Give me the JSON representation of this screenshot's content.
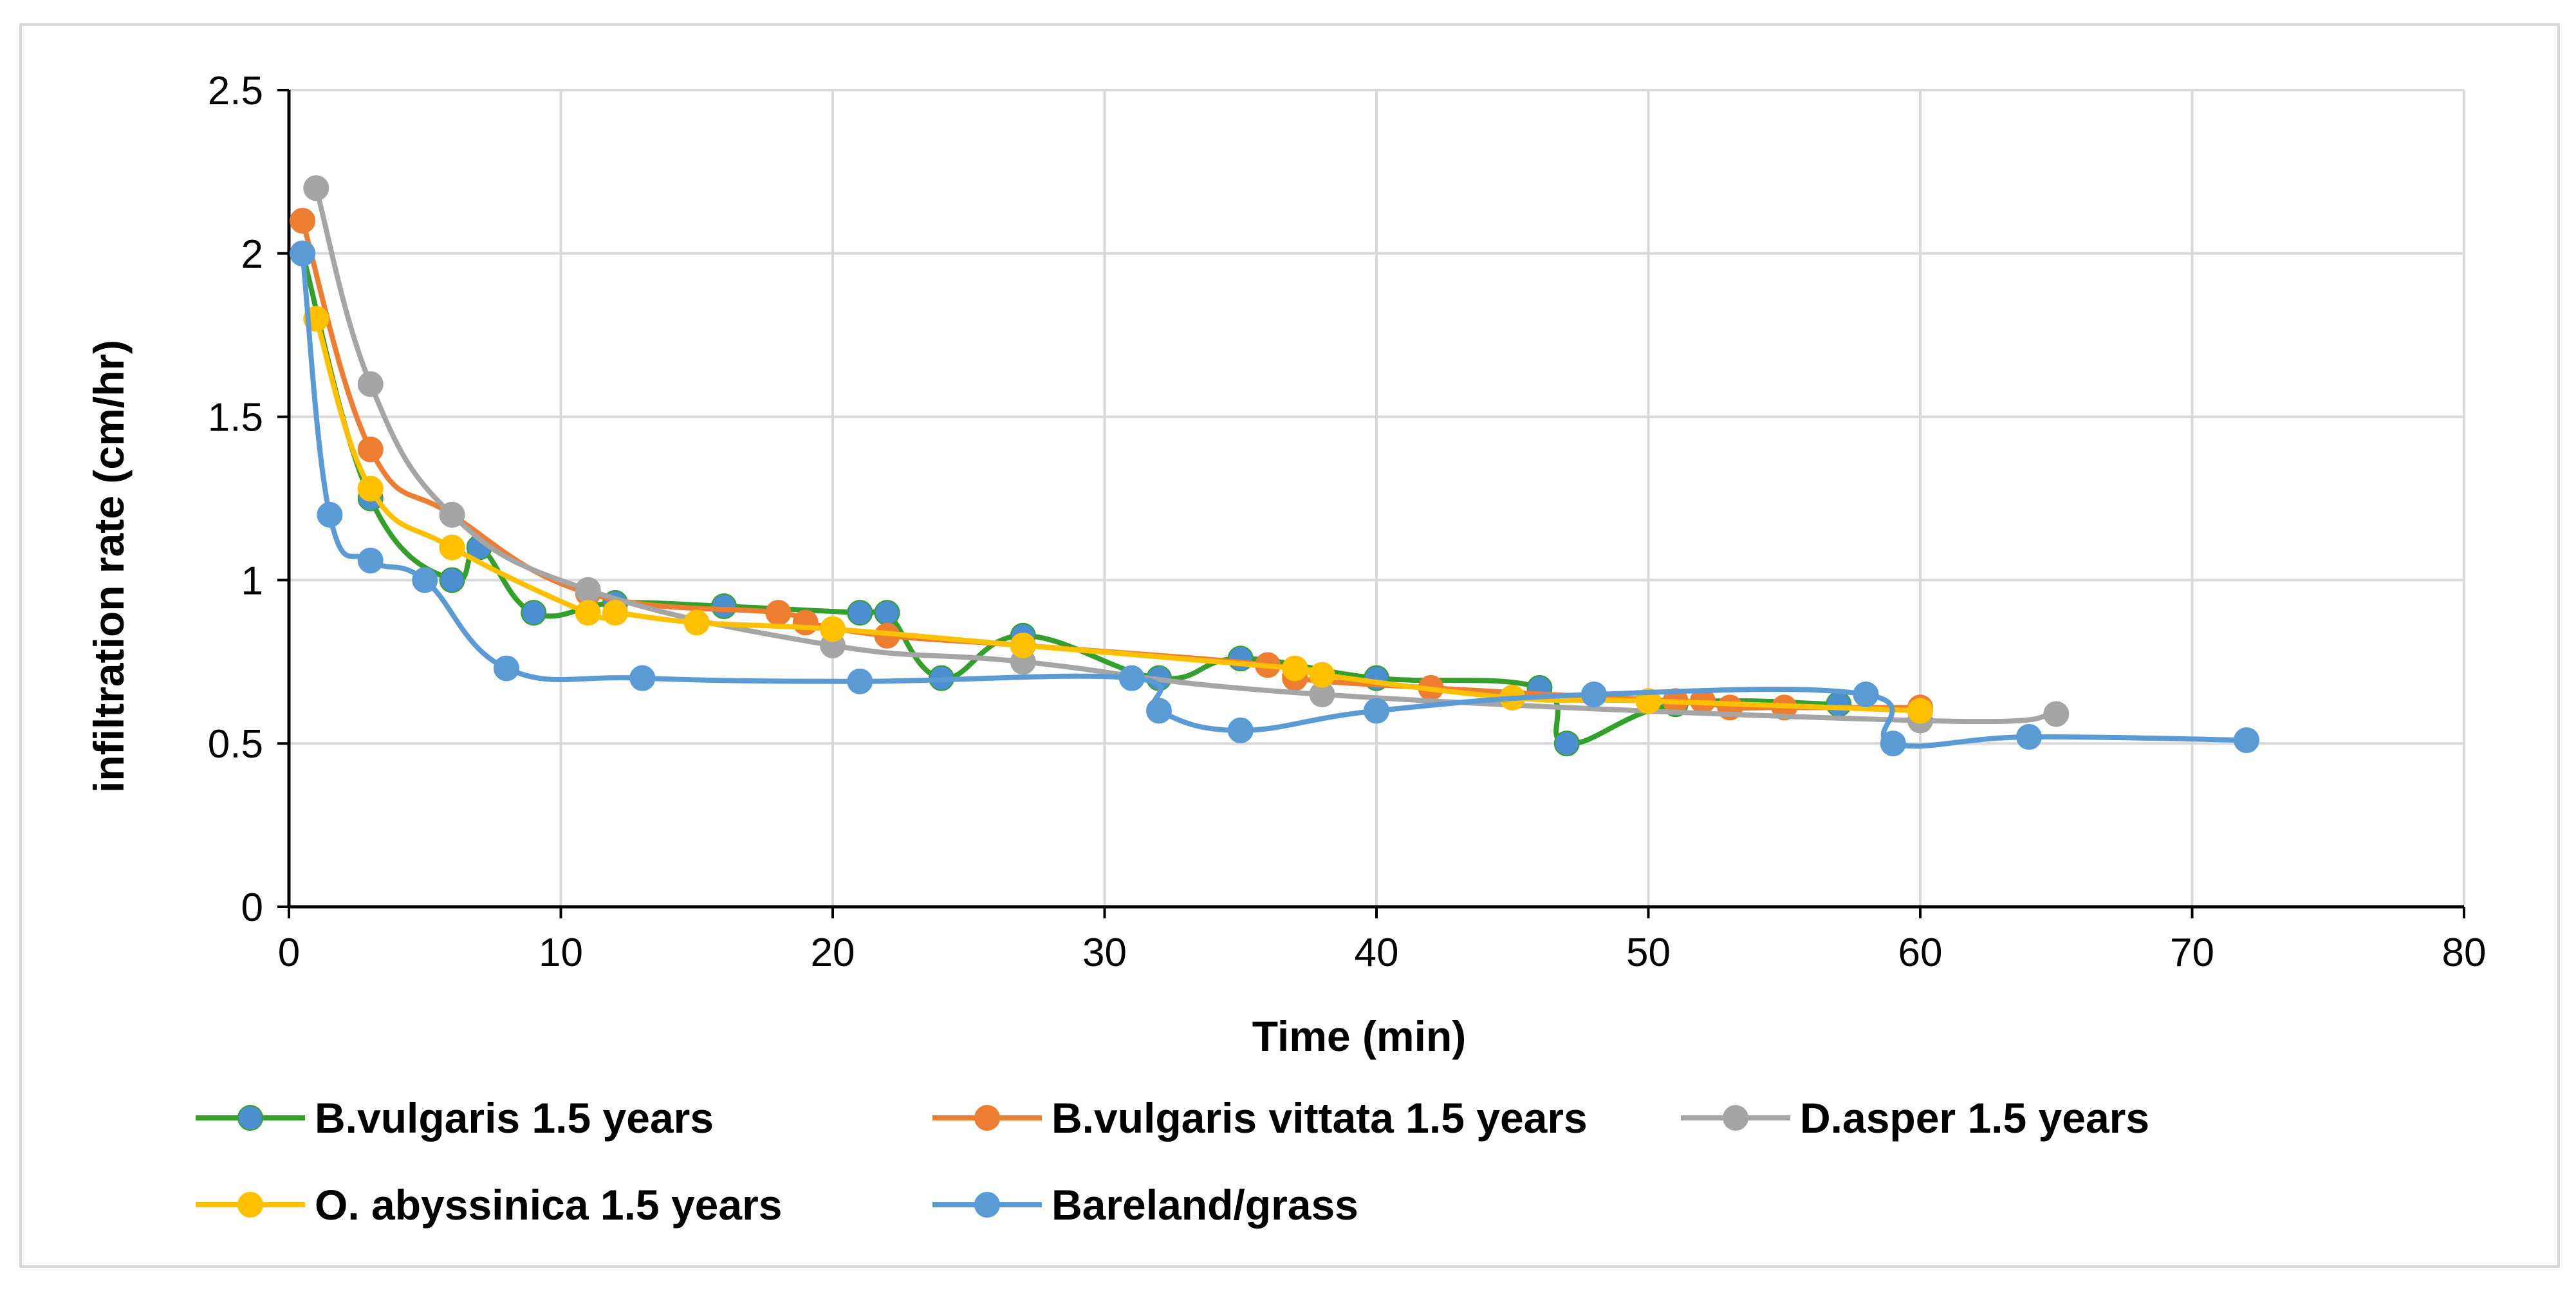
{
  "chart_data": {
    "type": "line",
    "title": "",
    "xlabel": "Time (min)",
    "ylabel": "infiltration rate (cm/hr)",
    "xlim": [
      0,
      80
    ],
    "ylim": [
      0,
      2.5
    ],
    "xticks": [
      "0",
      "10",
      "20",
      "30",
      "40",
      "50",
      "60",
      "70",
      "80"
    ],
    "yticks": [
      "0",
      "0.5",
      "1",
      "1.5",
      "2",
      "2.5"
    ],
    "grid": true,
    "legend_position": "bottom",
    "series": [
      {
        "name": "B.vulgaris 1.5 years",
        "color": "#33a02c",
        "marker_color": "#4a8fcf",
        "x": [
          0.5,
          3,
          6,
          7,
          9,
          12,
          16,
          21,
          22,
          24,
          27,
          32,
          35,
          40,
          46,
          47,
          51,
          57
        ],
        "y": [
          2.0,
          1.25,
          1.0,
          1.1,
          0.9,
          0.93,
          0.92,
          0.9,
          0.9,
          0.7,
          0.83,
          0.7,
          0.76,
          0.7,
          0.67,
          0.5,
          0.62,
          0.62
        ]
      },
      {
        "name": "B.vulgaris vittata 1.5 years",
        "color": "#ed7d31",
        "marker_color": "#ed7d31",
        "x": [
          0.5,
          3,
          6,
          11,
          18,
          19,
          22,
          27,
          36,
          37,
          42,
          51,
          52,
          53,
          55,
          60
        ],
        "y": [
          2.1,
          1.4,
          1.2,
          0.96,
          0.9,
          0.87,
          0.83,
          0.8,
          0.74,
          0.7,
          0.67,
          0.63,
          0.63,
          0.61,
          0.61,
          0.61
        ]
      },
      {
        "name": "D.asper 1.5 years",
        "color": "#a5a5a5",
        "marker_color": "#a5a5a5",
        "x": [
          1,
          3,
          6,
          11,
          20,
          27,
          38,
          60,
          65
        ],
        "y": [
          2.2,
          1.6,
          1.2,
          0.97,
          0.8,
          0.75,
          0.65,
          0.57,
          0.59
        ]
      },
      {
        "name": "O. abyssinica 1.5 years",
        "color": "#ffc000",
        "marker_color": "#ffc000",
        "x": [
          1,
          3,
          6,
          11,
          12,
          15,
          20,
          27,
          37,
          38,
          45,
          50,
          60
        ],
        "y": [
          1.8,
          1.28,
          1.1,
          0.9,
          0.9,
          0.87,
          0.85,
          0.8,
          0.73,
          0.71,
          0.64,
          0.63,
          0.6
        ]
      },
      {
        "name": "Bareland/grass",
        "color": "#5b9bd5",
        "marker_color": "#5b9bd5",
        "x": [
          0.5,
          1.5,
          3,
          5,
          8,
          13,
          21,
          31,
          32,
          35,
          40,
          48,
          58,
          59,
          64,
          72
        ],
        "y": [
          2.0,
          1.2,
          1.06,
          1.0,
          0.73,
          0.7,
          0.69,
          0.7,
          0.6,
          0.54,
          0.6,
          0.65,
          0.65,
          0.5,
          0.52,
          0.51
        ]
      }
    ]
  }
}
